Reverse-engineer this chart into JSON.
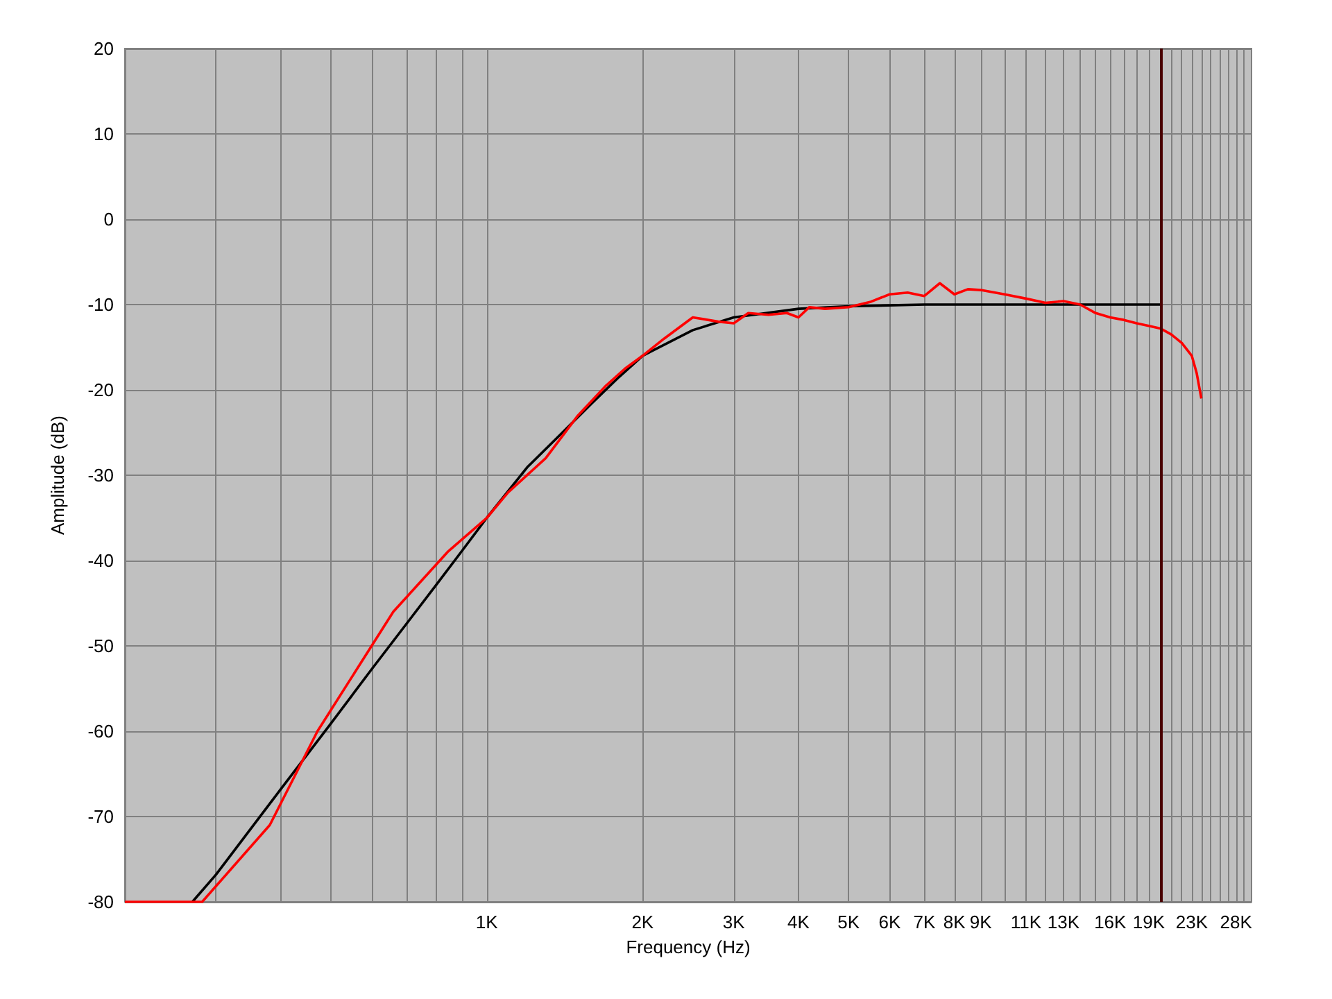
{
  "chart_data": {
    "type": "line",
    "xlabel": "Frequency (Hz)",
    "ylabel": "Amplitude (dB)",
    "log": "x",
    "grid": true,
    "marker": "none",
    "line_style": "solid",
    "xlim": [
      200,
      30000
    ],
    "ylim": [
      -80,
      20
    ],
    "xticks": [
      {
        "value": 300,
        "label": null
      },
      {
        "value": 400,
        "label": null
      },
      {
        "value": 500,
        "label": null
      },
      {
        "value": 600,
        "label": null
      },
      {
        "value": 700,
        "label": null
      },
      {
        "value": 800,
        "label": null
      },
      {
        "value": 900,
        "label": null
      },
      {
        "value": 1000,
        "label": "1K"
      },
      {
        "value": 2000,
        "label": "2K"
      },
      {
        "value": 3000,
        "label": "3K"
      },
      {
        "value": 4000,
        "label": "4K"
      },
      {
        "value": 5000,
        "label": "5K"
      },
      {
        "value": 6000,
        "label": "6K"
      },
      {
        "value": 7000,
        "label": "7K"
      },
      {
        "value": 8000,
        "label": "8K"
      },
      {
        "value": 9000,
        "label": "9K"
      },
      {
        "value": 10000,
        "label": null
      },
      {
        "value": 11000,
        "label": "11K"
      },
      {
        "value": 12000,
        "label": null
      },
      {
        "value": 13000,
        "label": "13K"
      },
      {
        "value": 14000,
        "label": null
      },
      {
        "value": 15000,
        "label": null
      },
      {
        "value": 16000,
        "label": "16K"
      },
      {
        "value": 17000,
        "label": null
      },
      {
        "value": 18000,
        "label": null
      },
      {
        "value": 19000,
        "label": "19K"
      },
      {
        "value": 20000,
        "label": null
      },
      {
        "value": 21000,
        "label": null
      },
      {
        "value": 22000,
        "label": null
      },
      {
        "value": 23000,
        "label": "23K"
      },
      {
        "value": 24000,
        "label": null
      },
      {
        "value": 25000,
        "label": null
      },
      {
        "value": 26000,
        "label": null
      },
      {
        "value": 27000,
        "label": null
      },
      {
        "value": 28000,
        "label": "28K"
      },
      {
        "value": 29000,
        "label": null
      }
    ],
    "yticks": [
      -80,
      -70,
      -60,
      -50,
      -40,
      -30,
      -20,
      -10,
      0,
      10,
      20
    ],
    "ref_lines": [
      {
        "axis": "x",
        "value": 20000,
        "color": "#4a0000"
      }
    ],
    "series": [
      {
        "color": "#000000",
        "x": [
          270,
          300,
          400,
          500,
          600,
          700,
          800,
          900,
          1000,
          1200,
          1400,
          1600,
          1800,
          2000,
          2500,
          3000,
          4000,
          5000,
          7000,
          20000
        ],
        "values": [
          -80,
          -76.8,
          -66.8,
          -59.1,
          -52.7,
          -47.4,
          -42.8,
          -38.7,
          -35,
          -29,
          -25,
          -21.5,
          -18.5,
          -16,
          -13,
          -11.5,
          -10.5,
          -10.2,
          -10,
          -10
        ]
      },
      {
        "color": "#ff0000",
        "x": [
          200,
          282,
          381,
          471,
          660,
          840,
          1000,
          1100,
          1300,
          1500,
          1700,
          1850,
          2000,
          2200,
          2500,
          2800,
          3000,
          3200,
          3500,
          3800,
          4000,
          4200,
          4500,
          5000,
          5500,
          6000,
          6500,
          7000,
          7500,
          8000,
          8500,
          9000,
          10000,
          11000,
          12000,
          13000,
          14000,
          15000,
          16000,
          17000,
          18000,
          19000,
          20000,
          21000,
          22000,
          23000,
          23500,
          24000
        ],
        "values": [
          -80,
          -80,
          -71,
          -60,
          -46,
          -39,
          -35,
          -32,
          -28,
          -23,
          -19.5,
          -17.5,
          -16,
          -14,
          -11.5,
          -12,
          -12.2,
          -11,
          -11.2,
          -11,
          -11.5,
          -10.3,
          -10.5,
          -10.3,
          -9.7,
          -8.8,
          -8.6,
          -9,
          -7.5,
          -8.8,
          -8.2,
          -8.3,
          -8.8,
          -9.3,
          -9.8,
          -9.6,
          -10,
          -11,
          -11.5,
          -11.8,
          -12.2,
          -12.5,
          -12.8,
          -13.5,
          -14.5,
          -16,
          -18,
          -21
        ]
      }
    ]
  }
}
